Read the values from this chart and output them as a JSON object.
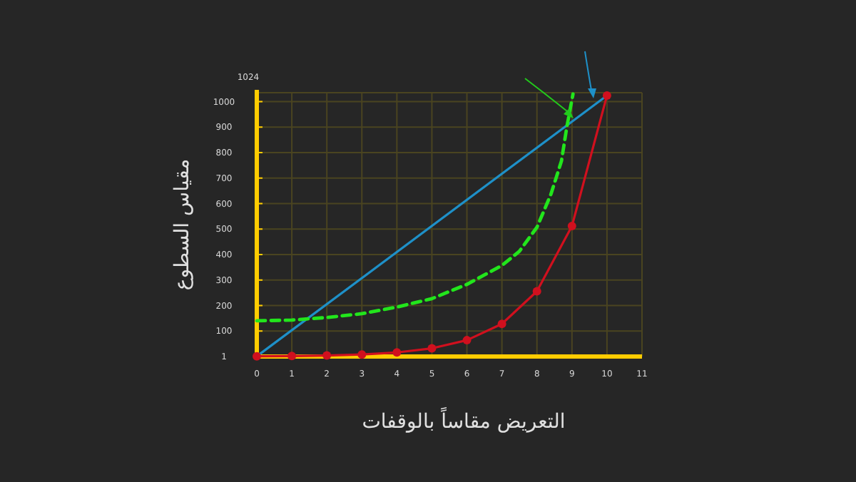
{
  "chart_data": {
    "type": "line",
    "xlabel": "التعريض مقاساً بالوقفات",
    "ylabel": "مقياس السطوع",
    "annotations": [
      "1024"
    ],
    "xlim": [
      0,
      11
    ],
    "ylim": [
      0,
      1035
    ],
    "xticks": [
      0,
      1,
      2,
      3,
      4,
      5,
      6,
      7,
      8,
      9,
      10,
      11
    ],
    "yticks": [
      1,
      100,
      200,
      300,
      400,
      500,
      600,
      700,
      800,
      900,
      1000
    ],
    "grid": true,
    "series": [
      {
        "color": "#1e90c8",
        "x": [
          0,
          10
        ],
        "values": [
          1,
          1024
        ],
        "marker": "none",
        "line_style": "solid"
      },
      {
        "color": "#22e51c",
        "x": [
          0,
          1,
          2,
          3,
          4,
          5,
          6,
          7,
          7.5,
          8,
          8.4,
          8.7,
          8.85,
          9.03
        ],
        "values": [
          140,
          143,
          153,
          168,
          194,
          227,
          283,
          357,
          413,
          507,
          637,
          767,
          898,
          1030
        ],
        "marker": "none",
        "line_style": "dashed"
      },
      {
        "color": "#d0101e",
        "x": [
          0,
          1,
          2,
          3,
          4,
          5,
          6,
          7,
          8,
          9,
          10
        ],
        "values": [
          1,
          2,
          4,
          8,
          16,
          32,
          64,
          128,
          256,
          512,
          1024
        ],
        "marker": "circle",
        "line_style": "solid"
      }
    ]
  }
}
